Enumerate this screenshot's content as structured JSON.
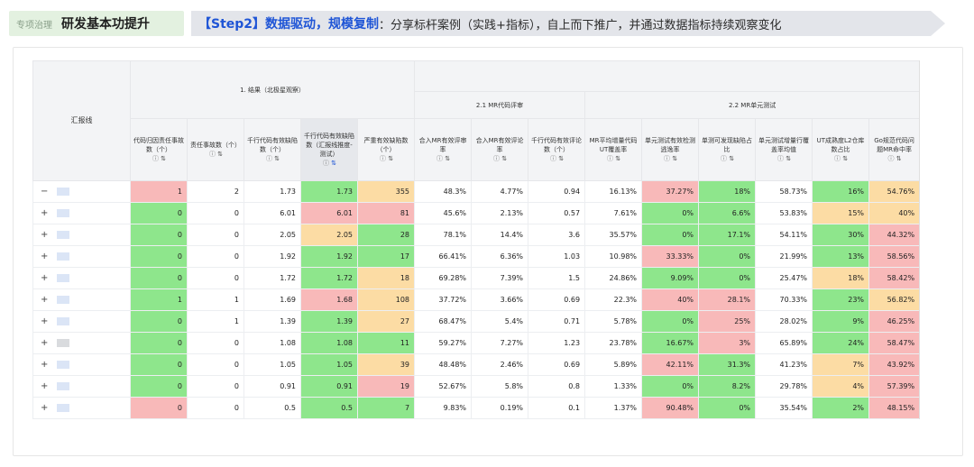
{
  "banner": {
    "tag_small": "专项治理",
    "tag_big": "研发基本功提升",
    "step_highlight": "【Step2】数据驱动，规模复制",
    "step_text": "：分享标杆案例（实践+指标），自上而下推广，并通过数据指标持续观察变化"
  },
  "table": {
    "corner_header": "汇报线",
    "group1": "1. 结果（北极星观察）",
    "group21": "2.1 MR代码评审",
    "group22": "2.2 MR单元测试",
    "columns": [
      "代码归因责任事故数（个）",
      "责任事故数（个）",
      "千行代码有效缺陷数（个）",
      "千行代码有效缺陷数（汇报线推度-测试）",
      "严重有效缺陷数（个）",
      "合入MR有效评审率",
      "合入MR有效评论率",
      "千行代码有效评论数（个）",
      "MR平均增量代码UT覆盖率",
      "单元测试有效检测逃逸率",
      "单测可发现缺陷占比",
      "单元测试增量行覆盖率均值",
      "UT成熟度L2仓库数占比",
      "Go规范代码问题MR命中率"
    ],
    "rows": [
      {
        "toggle": "−",
        "cells": [
          "1",
          "2",
          "1.73",
          "1.73",
          "355",
          "48.3%",
          "4.77%",
          "0.94",
          "16.13%",
          "37.27%",
          "18%",
          "58.73%",
          "16%",
          "54.76%"
        ]
      },
      {
        "toggle": "+",
        "cells": [
          "0",
          "0",
          "6.01",
          "6.01",
          "81",
          "45.6%",
          "2.13%",
          "0.57",
          "7.61%",
          "0%",
          "6.6%",
          "53.83%",
          "15%",
          "40%"
        ]
      },
      {
        "toggle": "+",
        "cells": [
          "0",
          "0",
          "2.05",
          "2.05",
          "28",
          "78.1%",
          "14.4%",
          "3.6",
          "35.57%",
          "0%",
          "17.1%",
          "54.11%",
          "30%",
          "44.32%"
        ]
      },
      {
        "toggle": "+",
        "cells": [
          "0",
          "0",
          "1.92",
          "1.92",
          "17",
          "66.41%",
          "6.36%",
          "1.03",
          "10.98%",
          "33.33%",
          "0%",
          "21.99%",
          "13%",
          "58.56%"
        ]
      },
      {
        "toggle": "+",
        "cells": [
          "0",
          "0",
          "1.72",
          "1.72",
          "18",
          "69.28%",
          "7.39%",
          "1.5",
          "24.86%",
          "9.09%",
          "0%",
          "25.47%",
          "18%",
          "58.42%"
        ]
      },
      {
        "toggle": "+",
        "cells": [
          "1",
          "1",
          "1.69",
          "1.68",
          "108",
          "37.72%",
          "3.66%",
          "0.69",
          "22.3%",
          "40%",
          "28.1%",
          "70.33%",
          "23%",
          "56.82%"
        ]
      },
      {
        "toggle": "+",
        "cells": [
          "0",
          "1",
          "1.39",
          "1.39",
          "27",
          "68.47%",
          "5.4%",
          "0.71",
          "5.78%",
          "0%",
          "25%",
          "28.02%",
          "9%",
          "46.25%"
        ]
      },
      {
        "toggle": "+",
        "cells": [
          "0",
          "0",
          "1.08",
          "1.08",
          "11",
          "59.27%",
          "7.27%",
          "1.23",
          "23.78%",
          "16.67%",
          "3%",
          "65.89%",
          "24%",
          "58.47%"
        ]
      },
      {
        "toggle": "+",
        "cells": [
          "0",
          "0",
          "1.05",
          "1.05",
          "39",
          "48.48%",
          "2.46%",
          "0.69",
          "5.89%",
          "42.11%",
          "31.3%",
          "41.23%",
          "7%",
          "43.92%"
        ]
      },
      {
        "toggle": "+",
        "cells": [
          "0",
          "0",
          "0.91",
          "0.91",
          "19",
          "52.67%",
          "5.8%",
          "0.8",
          "1.33%",
          "0%",
          "8.2%",
          "29.78%",
          "4%",
          "57.39%"
        ]
      },
      {
        "toggle": "+",
        "cells": [
          "0",
          "0",
          "0.5",
          "0.5",
          "7",
          "9.83%",
          "0.19%",
          "0.1",
          "1.37%",
          "90.48%",
          "0%",
          "35.54%",
          "2%",
          "48.15%"
        ]
      }
    ],
    "cell_colors": {
      "0": [
        "r",
        "g",
        "g",
        "g",
        "g",
        "g",
        "g",
        "g",
        "g",
        "g",
        "r"
      ],
      "3": [
        "g",
        "r",
        "y",
        "g",
        "g",
        "r",
        "g",
        "g",
        "g",
        "g",
        "g"
      ],
      "4": [
        "y",
        "r",
        "g",
        "g",
        "y",
        "y",
        "y",
        "g",
        "y",
        "r",
        "g"
      ],
      "9": [
        "r",
        "g",
        "g",
        "r",
        "g",
        "r",
        "g",
        "g",
        "r",
        "g",
        "r"
      ],
      "10": [
        "g",
        "g",
        "g",
        "g",
        "g",
        "r",
        "r",
        "r",
        "g",
        "g",
        "g"
      ],
      "12": [
        "g",
        "y",
        "g",
        "g",
        "y",
        "g",
        "g",
        "g",
        "y",
        "y",
        "g"
      ],
      "13": [
        "y",
        "y",
        "r",
        "r",
        "r",
        "y",
        "r",
        "r",
        "r",
        "r",
        "r"
      ]
    },
    "colors": {
      "green": "#8ee68c",
      "red": "#f8b9b9",
      "yellow": "#fcdca4",
      "accent": "#1f55d6"
    }
  }
}
